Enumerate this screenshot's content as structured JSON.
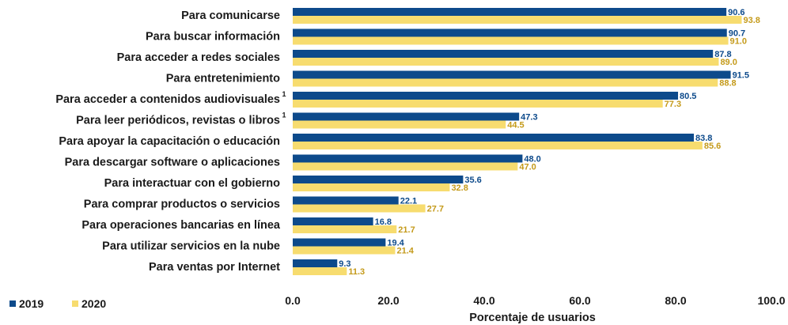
{
  "chart_data": {
    "type": "bar",
    "orientation": "horizontal",
    "categories": [
      "Para comunicarse",
      "Para buscar información",
      "Para acceder a redes sociales",
      "Para entretenimiento",
      "Para acceder a contenidos audiovisuales",
      "Para leer periódicos, revistas o libros",
      "Para apoyar la capacitación o educación",
      "Para descargar software o aplicaciones",
      "Para interactuar con el gobierno",
      "Para comprar productos o servicios",
      "Para operaciones bancarias en línea",
      "Para utilizar servicios en la nube",
      "Para ventas por Internet"
    ],
    "category_superscripts": [
      "",
      "",
      "",
      "",
      "1",
      "1",
      "",
      "",
      "",
      "",
      "",
      "",
      ""
    ],
    "series": [
      {
        "name": "2019",
        "color": "#0d4a8b",
        "values": [
          90.6,
          90.7,
          87.8,
          91.5,
          80.5,
          47.3,
          83.8,
          48.0,
          35.6,
          22.1,
          16.8,
          19.4,
          9.3
        ],
        "labels": [
          "90.6",
          "90.7",
          "87.8",
          "91.5",
          "80.5",
          "47.3",
          "83.8",
          "48.0",
          "35.6",
          "22.1",
          "16.8",
          "19.4",
          "9.3"
        ]
      },
      {
        "name": "2020",
        "color": "#f7dc6f",
        "label_color": "#c49a1a",
        "values": [
          93.8,
          91.0,
          89.0,
          88.8,
          77.3,
          44.5,
          85.6,
          47.0,
          32.8,
          27.7,
          21.7,
          21.4,
          11.3
        ],
        "labels": [
          "93.8",
          "91.0",
          "89.0",
          "88.8",
          "77.3",
          "44.5",
          "85.6",
          "47.0",
          "32.8",
          "27.7",
          "21.7",
          "21.4",
          "11.3"
        ]
      }
    ],
    "xlim": [
      0,
      100
    ],
    "xticks": [
      "0.0",
      "20.0",
      "40.0",
      "60.0",
      "80.0",
      "100.0"
    ],
    "xlabel": "Porcentaje de usuarios",
    "legend_position": "bottom-left",
    "grid": false
  }
}
